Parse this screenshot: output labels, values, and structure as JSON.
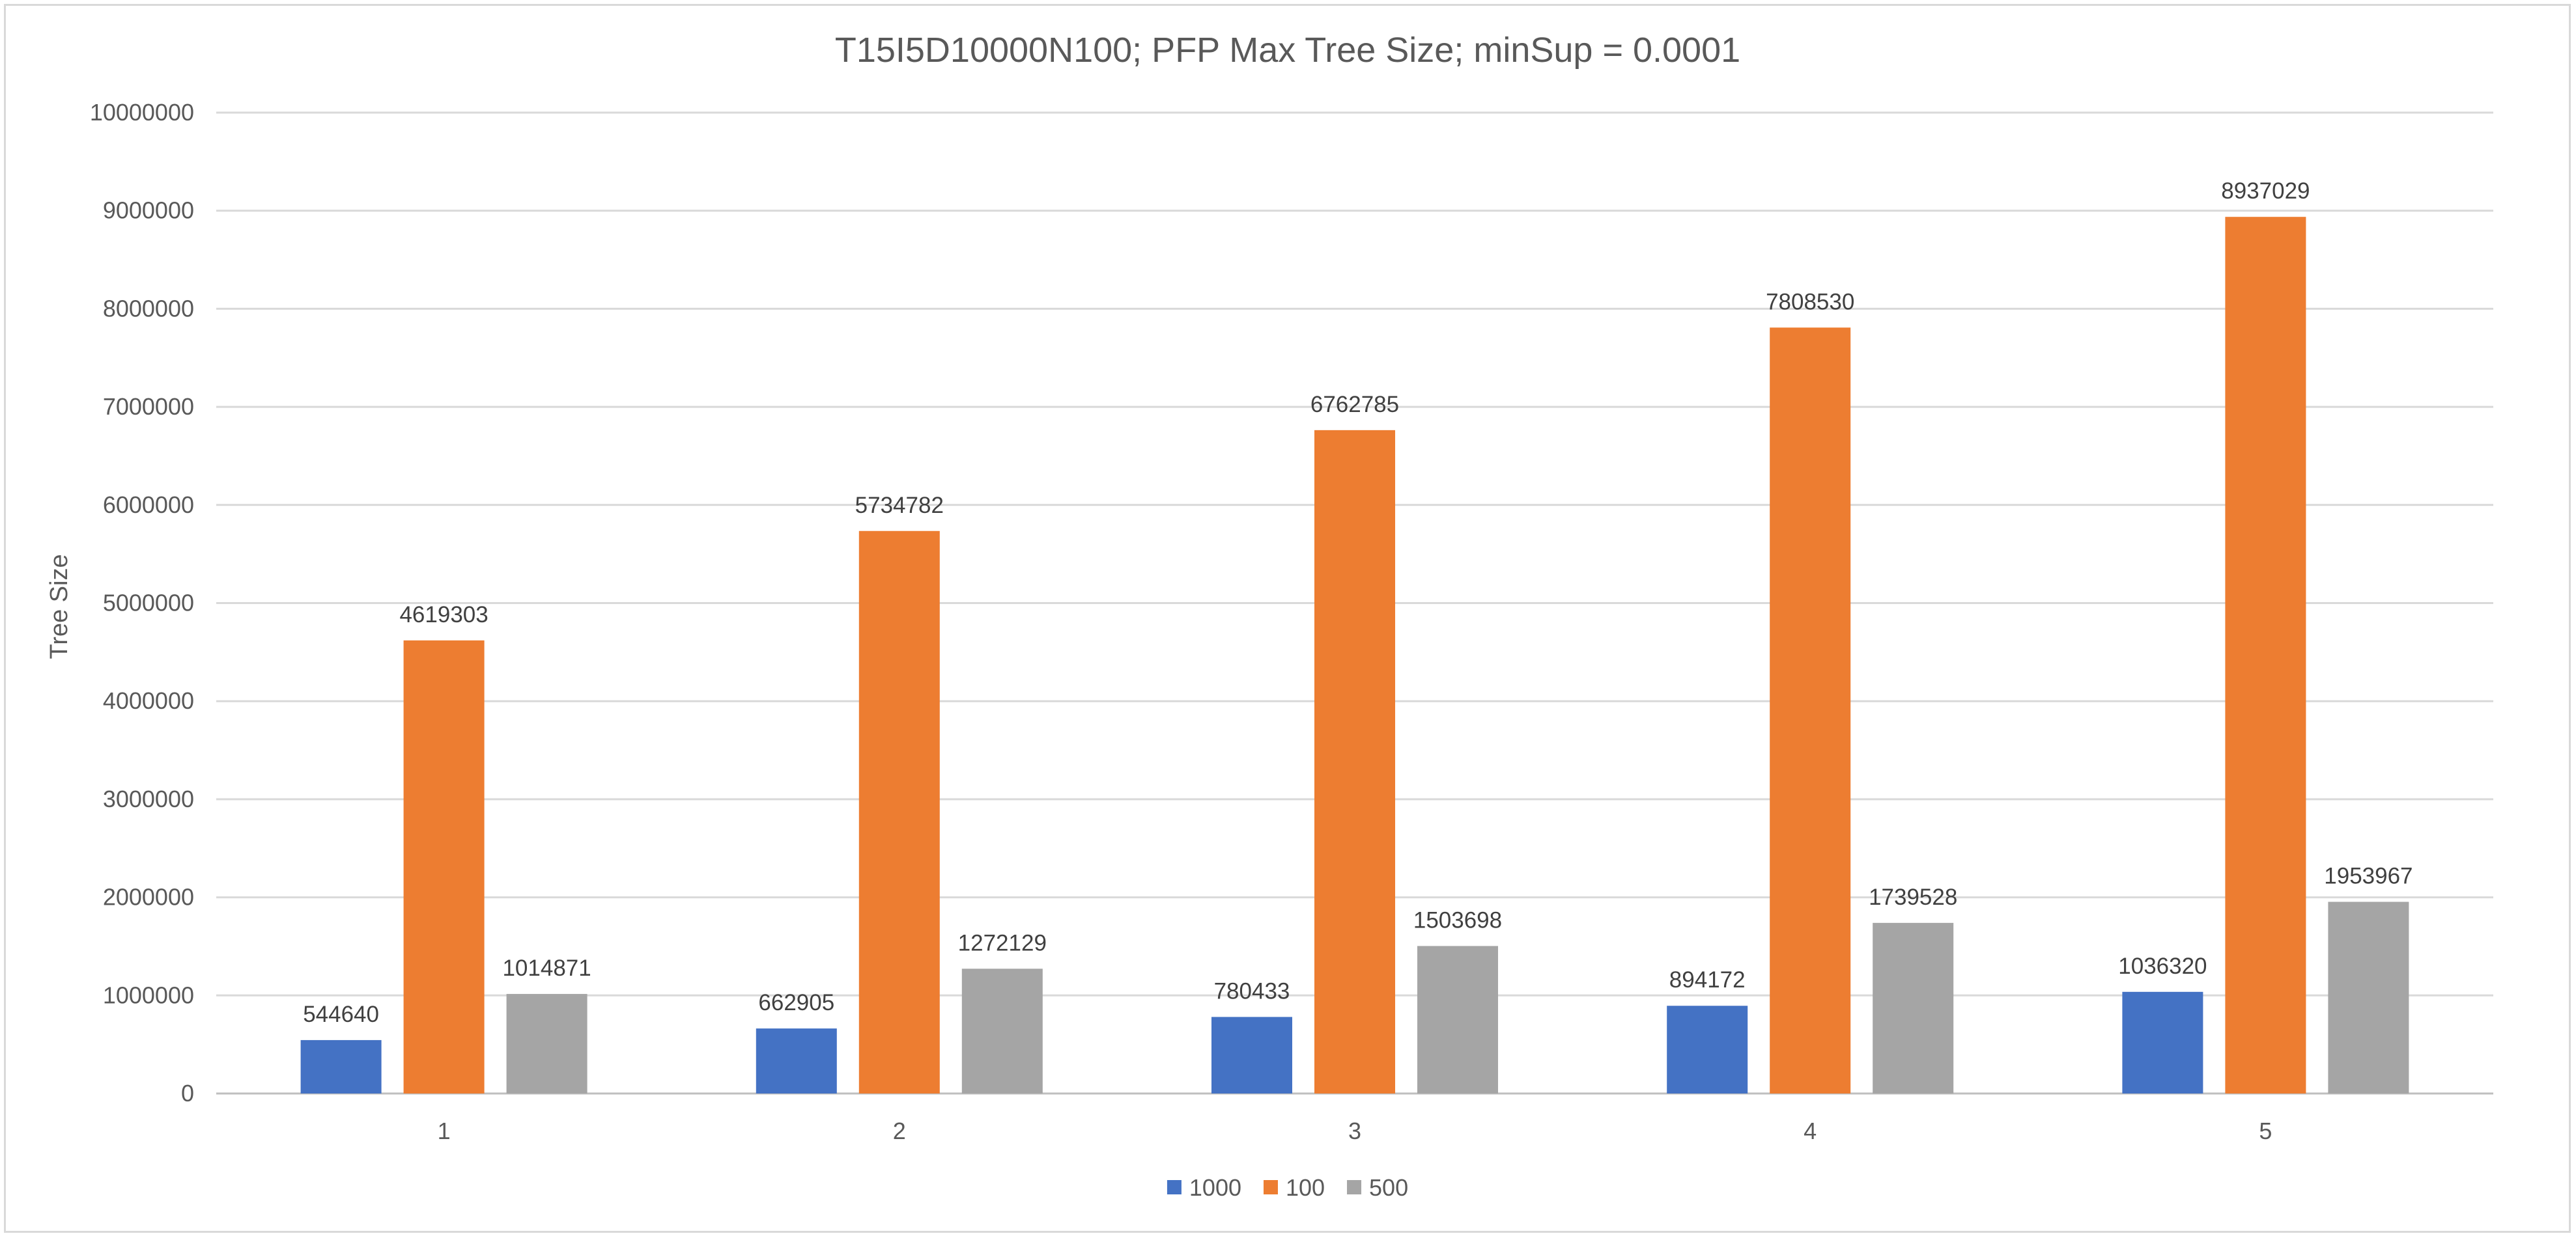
{
  "chart_data": {
    "type": "bar",
    "title": "T15I5D10000N100; PFP Max Tree Size; minSup = 0.0001",
    "xlabel": "",
    "ylabel": "Tree Size",
    "categories": [
      "1",
      "2",
      "3",
      "4",
      "5"
    ],
    "series": [
      {
        "name": "1000",
        "color": "#4472C4",
        "values": [
          544640,
          662905,
          780433,
          894172,
          1036320
        ]
      },
      {
        "name": "100",
        "color": "#ED7D31",
        "values": [
          4619303,
          5734782,
          6762785,
          7808530,
          8937029
        ]
      },
      {
        "name": "500",
        "color": "#A5A5A5",
        "values": [
          1014871,
          1272129,
          1503698,
          1739528,
          1953967
        ]
      }
    ],
    "ylim": [
      0,
      10000000
    ],
    "yticks": [
      "0",
      "1000000",
      "2000000",
      "3000000",
      "4000000",
      "5000000",
      "6000000",
      "7000000",
      "8000000",
      "9000000",
      "10000000"
    ],
    "grid": true,
    "legend_position": "bottom-center"
  }
}
